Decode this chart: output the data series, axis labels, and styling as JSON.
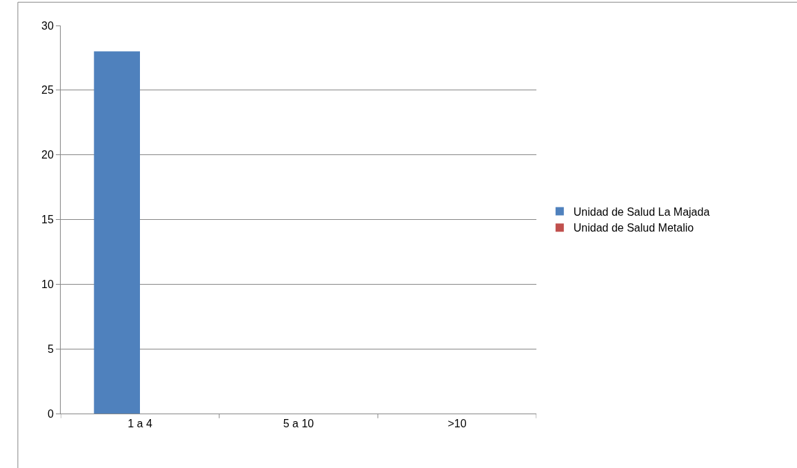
{
  "chart_data": {
    "type": "bar",
    "categories": [
      "1 a 4",
      "5 a 10",
      ">10"
    ],
    "series": [
      {
        "name": "Unidad de Salud La Majada",
        "color": "#4f81bd",
        "values": [
          28,
          0,
          0
        ]
      },
      {
        "name": "Unidad de Salud Metalio",
        "color": "#c0504d",
        "values": [
          0,
          0,
          0
        ]
      }
    ],
    "ylim": [
      0,
      30
    ],
    "yticks": [
      0,
      5,
      10,
      15,
      20,
      25,
      30
    ],
    "grid": "y",
    "legend": "right"
  }
}
